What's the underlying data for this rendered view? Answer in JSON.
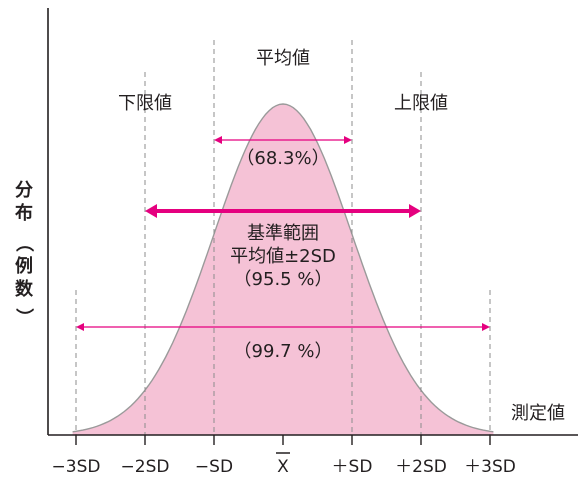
{
  "chart_data": {
    "type": "area",
    "title": "",
    "ylabel_chars": [
      "分",
      "布",
      "（",
      "例",
      "数",
      "）"
    ],
    "xlabel": "測定値",
    "x_ticks": [
      {
        "x": -3,
        "label": "−3SD"
      },
      {
        "x": -2,
        "label": "−2SD"
      },
      {
        "x": -1,
        "label": "−SD"
      },
      {
        "x": 0,
        "label": "X",
        "overline": true
      },
      {
        "x": 1,
        "label": "＋SD"
      },
      {
        "x": 2,
        "label": "＋2SD"
      },
      {
        "x": 3,
        "label": "＋3SD"
      }
    ],
    "xlim": [
      -3.5,
      4.4
    ],
    "curve": {
      "type": "normal",
      "mean": 0,
      "sd": 1,
      "fill": "#f5c2d6",
      "stroke": "#9a9a9a"
    },
    "guide_lines": [
      {
        "x": -3,
        "top_label": ""
      },
      {
        "x": -2,
        "top_label": "下限値"
      },
      {
        "x": -1,
        "top_label": ""
      },
      {
        "x": 0,
        "top_label": "平均値"
      },
      {
        "x": 1,
        "top_label": ""
      },
      {
        "x": 2,
        "top_label": "上限値"
      },
      {
        "x": 3,
        "top_label": ""
      }
    ],
    "ranges": [
      {
        "from": -1,
        "to": 1,
        "label": "（68.3%）",
        "bold": false
      },
      {
        "from": -2,
        "to": 2,
        "label_lines": [
          "基準範囲",
          "平均値±2SD",
          "（95.5 %）"
        ],
        "bold": true
      },
      {
        "from": -3,
        "to": 3,
        "label": "（99.7 %）",
        "bold": false
      }
    ],
    "accent_color": "#e5007f",
    "axis_color": "#231f20"
  }
}
